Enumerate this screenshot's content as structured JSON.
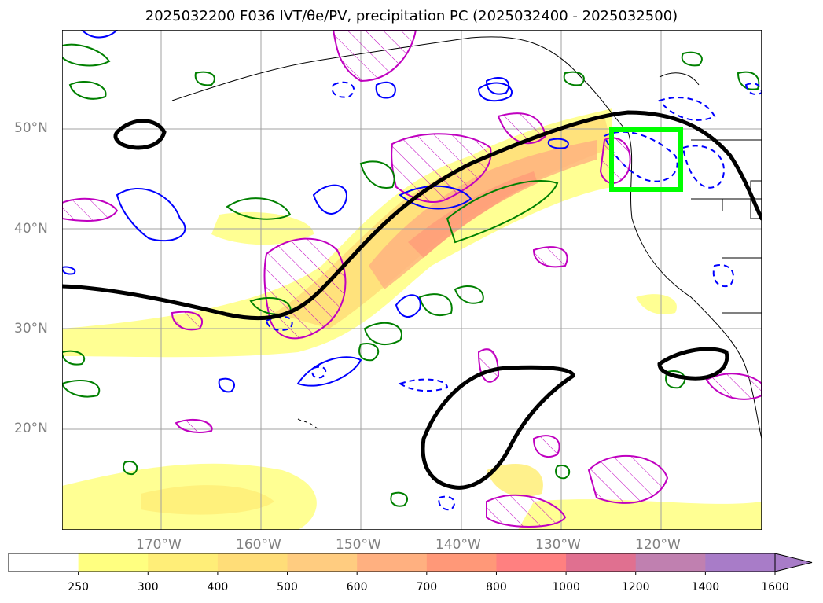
{
  "title": "2025032200 F036 IVT/θe/PV, precipitation PC (2025032400 - 2025032500)",
  "lat_labels": [
    "50°N",
    "40°N",
    "30°N",
    "20°N"
  ],
  "lon_labels": [
    "170°W",
    "160°W",
    "150°W",
    "140°W",
    "130°W",
    "120°W"
  ],
  "colorbar": {
    "ticks": [
      "250",
      "300",
      "400",
      "500",
      "600",
      "700",
      "800",
      "1000",
      "1200",
      "1400",
      "1600"
    ],
    "colors": [
      "#ffffff",
      "#ffff80",
      "#ffee78",
      "#ffdd78",
      "#ffcc80",
      "#ffb080",
      "#ff9878",
      "#ff8080",
      "#e07090",
      "#c080b0",
      "#a87cc8"
    ],
    "extend": "max"
  },
  "colors": {
    "ivt_jet": "#000000",
    "theta_e_solid": "#0000ff",
    "pv": "#008000",
    "precip_hatch": "#c000c0",
    "target_box": "#00ff00"
  },
  "map": {
    "extent": {
      "lon_min": -180,
      "lon_max": -110,
      "lat_min": 10,
      "lat_max": 60
    },
    "gridlines": true,
    "target_box": {
      "lon_range": [
        -125,
        -118
      ],
      "lat_range": [
        44,
        50
      ]
    }
  }
}
